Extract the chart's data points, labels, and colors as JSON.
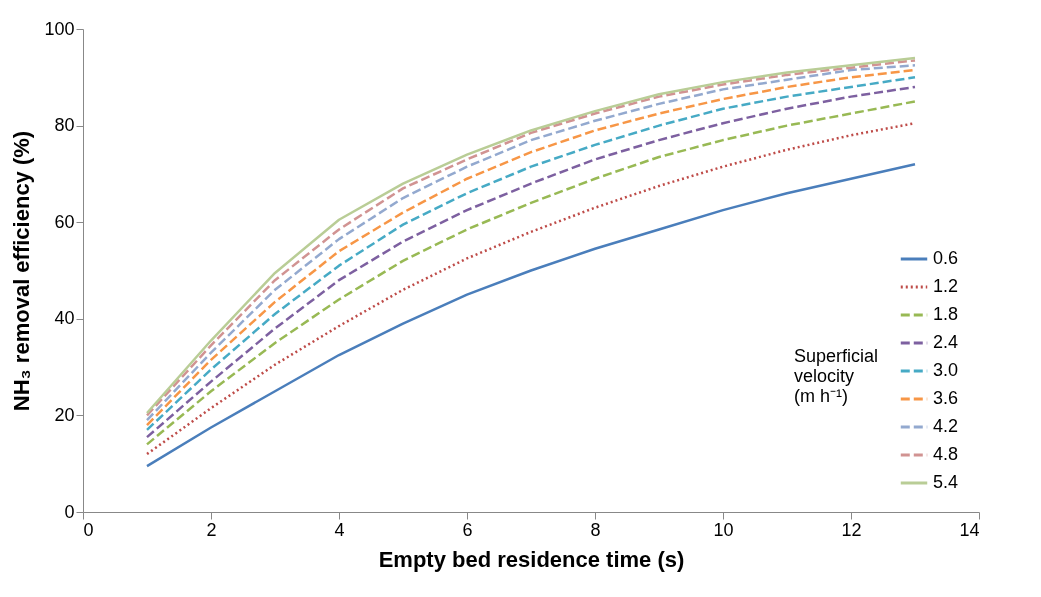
{
  "chart_data": {
    "type": "line",
    "xlabel": "Empty bed residence time (s)",
    "ylabel": "NH₃ removal efficiency (%)",
    "legend_title": "Superficial velocity (m h⁻¹)",
    "x": [
      1,
      2,
      3,
      4,
      5,
      6,
      7,
      8,
      9,
      10,
      11,
      12,
      13
    ],
    "xlim": [
      0,
      14
    ],
    "xticks": [
      0,
      2,
      4,
      6,
      8,
      10,
      12,
      14
    ],
    "ylim": [
      0,
      100
    ],
    "yticks": [
      0,
      20,
      40,
      60,
      80,
      100
    ],
    "grid": false,
    "legend": "bottom right",
    "marker": "none",
    "series": [
      {
        "name": "0.6",
        "color": "#4a7ebb",
        "line_style": "solid",
        "values": [
          9.5,
          17.5,
          25,
          32.5,
          39,
          45,
          50,
          54.5,
          58.5,
          62.5,
          66,
          69,
          72
        ]
      },
      {
        "name": "1.2",
        "color": "#be4b48",
        "line_style": "dotted",
        "values": [
          12,
          21.5,
          30.5,
          38.5,
          46,
          52.5,
          58,
          63,
          67.5,
          71.5,
          75,
          78,
          80.5
        ]
      },
      {
        "name": "1.8",
        "color": "#98b954",
        "line_style": "dashed",
        "values": [
          14,
          25,
          35,
          44,
          52,
          58.5,
          64,
          69,
          73.5,
          77,
          80,
          82.5,
          85
        ]
      },
      {
        "name": "2.4",
        "color": "#7d60a0",
        "line_style": "dashed",
        "values": [
          15.5,
          27,
          38,
          48,
          56,
          62.5,
          68,
          73,
          77,
          80.5,
          83.5,
          86,
          88
        ]
      },
      {
        "name": "3.0",
        "color": "#46aac5",
        "line_style": "dashed",
        "values": [
          17,
          29.5,
          41,
          51,
          59.5,
          66,
          71.5,
          76,
          80,
          83.5,
          86,
          88,
          90
        ]
      },
      {
        "name": "3.6",
        "color": "#f79646",
        "line_style": "dashed",
        "values": [
          18,
          31.5,
          43.5,
          54,
          62,
          69,
          74.5,
          79,
          82.5,
          85.5,
          88,
          90,
          91.5
        ]
      },
      {
        "name": "4.2",
        "color": "#93a9cf",
        "line_style": "dashed",
        "values": [
          19,
          33,
          46,
          56.5,
          65,
          71.5,
          77,
          81,
          84.5,
          87.5,
          89.5,
          91.5,
          92.5
        ]
      },
      {
        "name": "4.8",
        "color": "#d19392",
        "line_style": "dashed",
        "values": [
          20,
          34.5,
          48,
          58.5,
          67,
          73,
          78.5,
          82.5,
          86,
          88.5,
          90.5,
          92,
          93.5
        ]
      },
      {
        "name": "5.4",
        "color": "#b9cd96",
        "line_style": "solid",
        "values": [
          20.5,
          35.5,
          49.5,
          60.5,
          68,
          74,
          79,
          83,
          86.5,
          89,
          91,
          92.5,
          94
        ]
      }
    ]
  }
}
